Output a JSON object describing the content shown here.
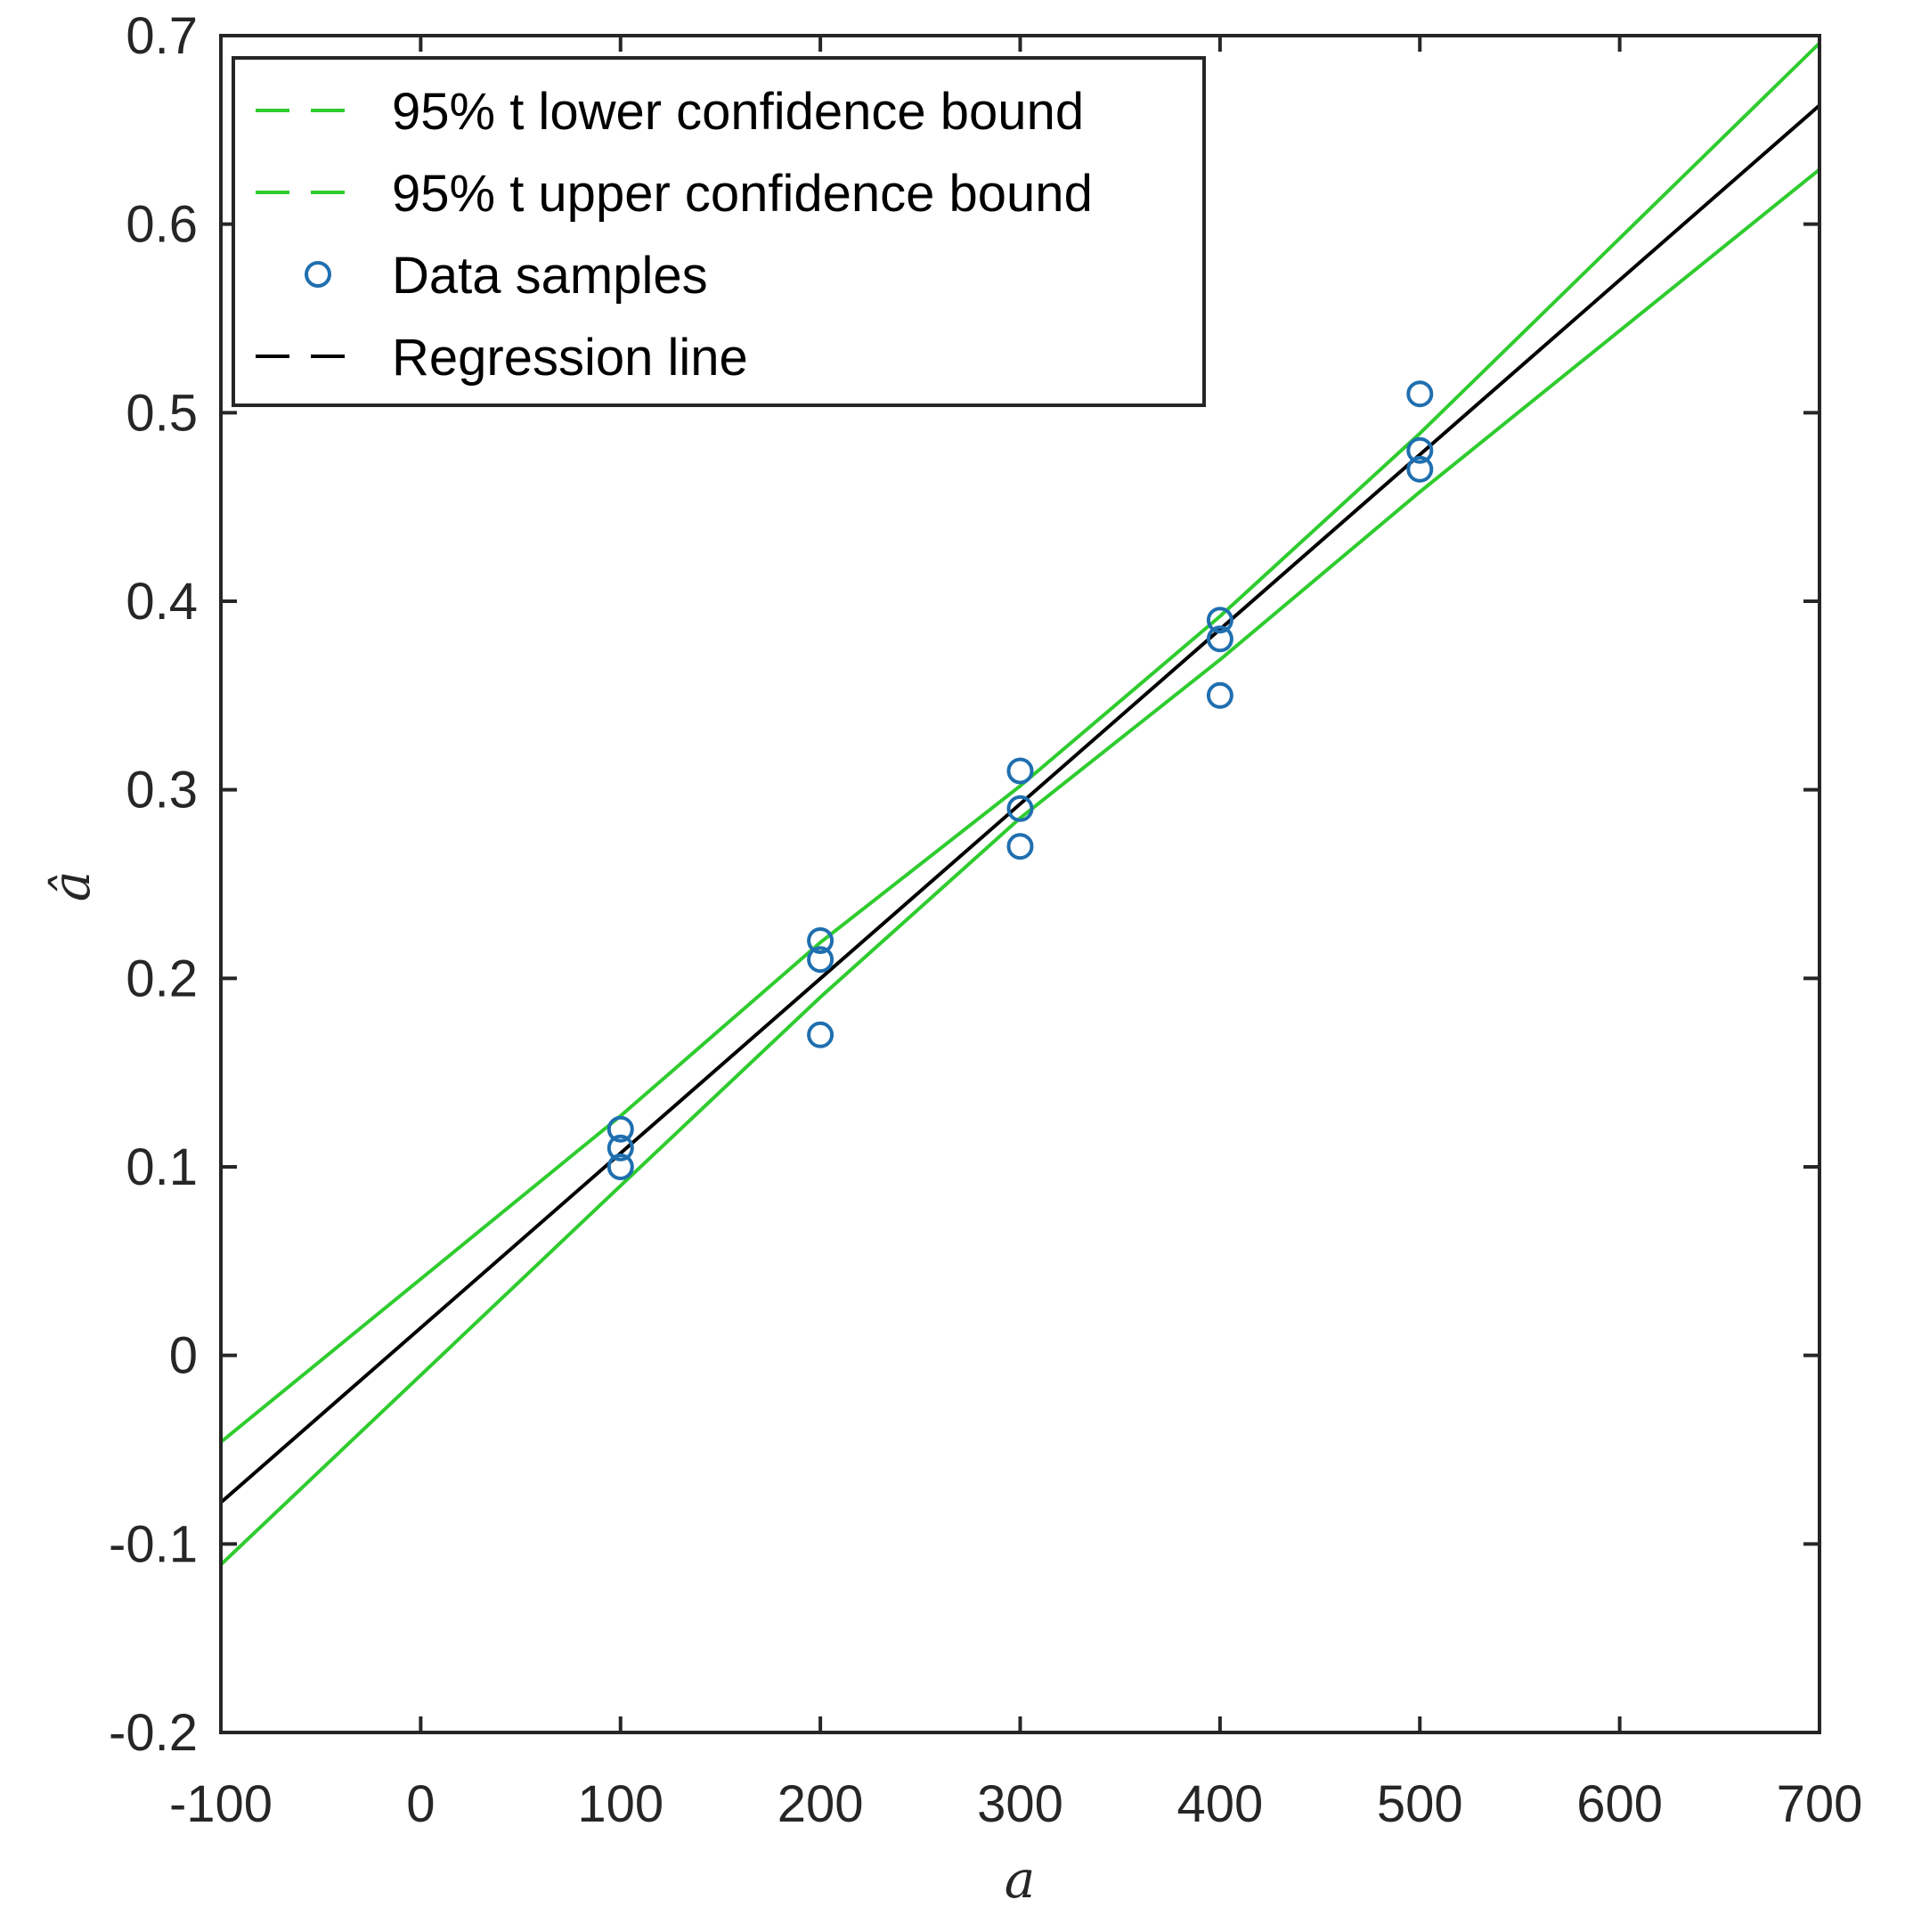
{
  "chart_data": {
    "type": "scatter",
    "title": "",
    "xlabel": "a",
    "ylabel": "â",
    "xlim": [
      -100,
      700
    ],
    "ylim": [
      -0.2,
      0.7
    ],
    "xticks": [
      -100,
      0,
      100,
      200,
      300,
      400,
      500,
      600,
      700
    ],
    "xtick_labels": [
      "-100",
      "0",
      "100",
      "200",
      "300",
      "400",
      "500",
      "600",
      "700"
    ],
    "yticks": [
      -0.2,
      -0.1,
      0,
      0.1,
      0.2,
      0.3,
      0.4,
      0.5,
      0.6,
      0.7
    ],
    "ytick_labels": [
      "-0.2",
      "-0.1",
      "0",
      "0.1",
      "0.2",
      "0.3",
      "0.4",
      "0.5",
      "0.6",
      "0.7"
    ],
    "grid": false,
    "legend_position": "top-left",
    "series": [
      {
        "name": "95% t lower confidence bound",
        "kind": "line",
        "color": "#2ecc2e",
        "x": [
          -100,
          100,
          200,
          300,
          400,
          500,
          700
        ],
        "y": [
          -0.111,
          0.09,
          0.19,
          0.285,
          0.369,
          0.458,
          0.629
        ]
      },
      {
        "name": "95% t upper confidence bound",
        "kind": "line",
        "color": "#2ecc2e",
        "x": [
          -100,
          100,
          200,
          300,
          400,
          500,
          700
        ],
        "y": [
          -0.046,
          0.127,
          0.219,
          0.302,
          0.392,
          0.489,
          0.696
        ]
      },
      {
        "name": "Data samples",
        "kind": "scatter",
        "color": "#1f6fb0",
        "x": [
          100,
          100,
          100,
          200,
          200,
          200,
          300,
          300,
          300,
          400,
          400,
          400,
          500,
          500,
          500
        ],
        "y": [
          0.12,
          0.11,
          0.1,
          0.22,
          0.21,
          0.17,
          0.31,
          0.29,
          0.27,
          0.39,
          0.38,
          0.35,
          0.51,
          0.48,
          0.47
        ]
      },
      {
        "name": "Regression line",
        "kind": "line",
        "color": "#000000",
        "x": [
          -100,
          700
        ],
        "y": [
          -0.078,
          0.663
        ]
      }
    ]
  }
}
